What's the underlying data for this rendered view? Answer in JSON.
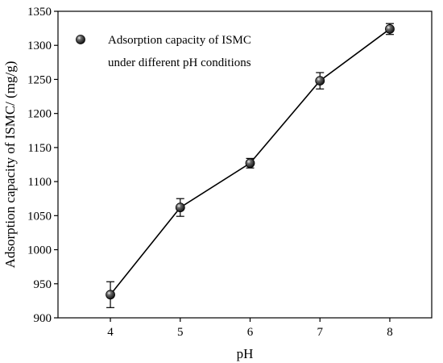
{
  "chart_data": {
    "type": "line",
    "x": [
      4,
      5,
      6,
      7,
      8
    ],
    "series": [
      {
        "name": "Adsorption capacity of ISMC under different pH conditions",
        "name_lines": [
          "Adsorption capacity of ISMC",
          "under different pH conditions"
        ],
        "y": [
          934,
          1062,
          1127,
          1248,
          1324
        ],
        "error": [
          19,
          13,
          7,
          12,
          8
        ]
      }
    ],
    "xlabel": "pH",
    "ylabel": "Adsorption capacity of ISMC/ (mg/g)",
    "xlim": [
      3.25,
      8.6
    ],
    "ylim": [
      900,
      1350
    ],
    "xticks": [
      4,
      5,
      6,
      7,
      8
    ],
    "yticks": [
      900,
      950,
      1000,
      1050,
      1100,
      1150,
      1200,
      1250,
      1300,
      1350
    ],
    "grid": false,
    "legend_position": "top-left",
    "colors": {
      "line": "#000000",
      "marker": "#1a1a1a"
    }
  }
}
